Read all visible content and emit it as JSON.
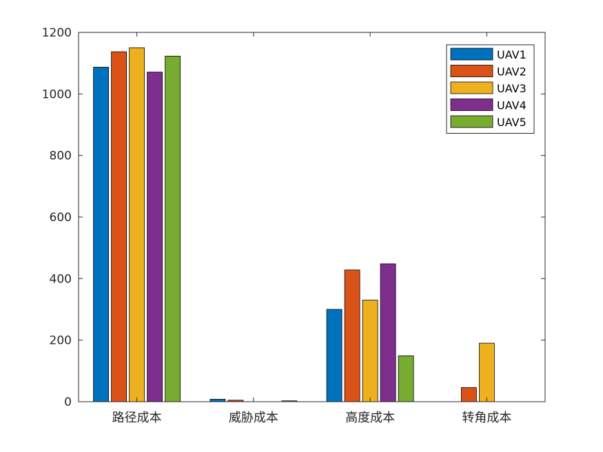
{
  "chart_data": {
    "type": "bar",
    "title": "",
    "xlabel": "",
    "ylabel": "",
    "categories": [
      "路径成本",
      "威胁成本",
      "高度成本",
      "转角成本"
    ],
    "ylim": [
      0,
      1200
    ],
    "yticks": [
      0,
      200,
      400,
      600,
      800,
      1000,
      1200
    ],
    "grid": false,
    "legend_position": "top-right",
    "series": [
      {
        "name": "UAV1",
        "color": "#0072BD",
        "values": [
          1087,
          8,
          300,
          0
        ]
      },
      {
        "name": "UAV2",
        "color": "#D95319",
        "values": [
          1137,
          5,
          428,
          46
        ]
      },
      {
        "name": "UAV3",
        "color": "#EDB120",
        "values": [
          1150,
          0,
          330,
          190
        ]
      },
      {
        "name": "UAV4",
        "color": "#7E2F8E",
        "values": [
          1071,
          0,
          448,
          0
        ]
      },
      {
        "name": "UAV5",
        "color": "#77AC30",
        "values": [
          1123,
          3,
          149,
          0
        ]
      }
    ]
  }
}
